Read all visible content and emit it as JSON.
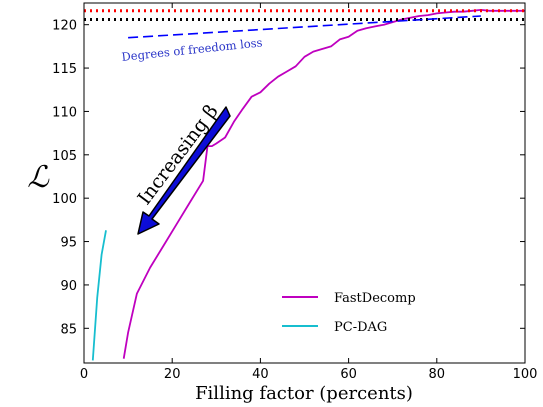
{
  "chart_data": {
    "type": "line",
    "xlabel": "Filling factor (percents)",
    "ylabel": "ℒ",
    "xlim": [
      0,
      100
    ],
    "ylim": [
      81,
      122.5
    ],
    "x_ticks": [
      0,
      20,
      40,
      60,
      80,
      100
    ],
    "y_ticks": [
      85,
      90,
      95,
      100,
      105,
      110,
      115,
      120
    ],
    "grid": false,
    "legend_position": "lower-right",
    "series": [
      {
        "name": "FastDecomp",
        "color": "#bf00bf",
        "style": "solid",
        "x": [
          9,
          10,
          12,
          15,
          18,
          21,
          24,
          27,
          28,
          29,
          30,
          32,
          34,
          36,
          38,
          40,
          42,
          44,
          46,
          48,
          50,
          52,
          54,
          56,
          58,
          60,
          62,
          64,
          66,
          68,
          70,
          72,
          74,
          76,
          78,
          80,
          82,
          84,
          86,
          88,
          90,
          92,
          94,
          96,
          98,
          100
        ],
        "y": [
          81.5,
          84.5,
          89,
          92,
          94.5,
          97,
          99.5,
          102,
          106,
          106,
          106.3,
          107,
          108.8,
          110.3,
          111.7,
          112.2,
          113.2,
          114,
          114.6,
          115.2,
          116.3,
          116.9,
          117.2,
          117.5,
          118.3,
          118.6,
          119.3,
          119.6,
          119.8,
          120,
          120.3,
          120.6,
          120.8,
          121,
          121.1,
          121.3,
          121.4,
          121.5,
          121.5,
          121.6,
          121.7,
          121.6,
          121.6,
          121.6,
          121.6,
          121.6
        ]
      },
      {
        "name": "PC-DAG",
        "color": "#17becf",
        "style": "solid",
        "x": [
          2,
          3,
          4,
          5
        ],
        "y": [
          81.3,
          88.5,
          93.5,
          96.3
        ]
      },
      {
        "color": "#ff0000",
        "style": "dotted",
        "x": [
          0,
          100
        ],
        "y": [
          121.6,
          121.6
        ]
      },
      {
        "color": "#000000",
        "style": "dotted",
        "x": [
          0,
          100
        ],
        "y": [
          120.6,
          120.6
        ]
      },
      {
        "color": "#0000ff",
        "style": "dashed",
        "x": [
          10,
          90
        ],
        "y": [
          118.5,
          121
        ]
      }
    ],
    "annotations": [
      {
        "text": "Degrees of freedom loss",
        "color": "#2a35c8"
      },
      {
        "text": "Increasing β",
        "color": "#000000"
      }
    ]
  }
}
